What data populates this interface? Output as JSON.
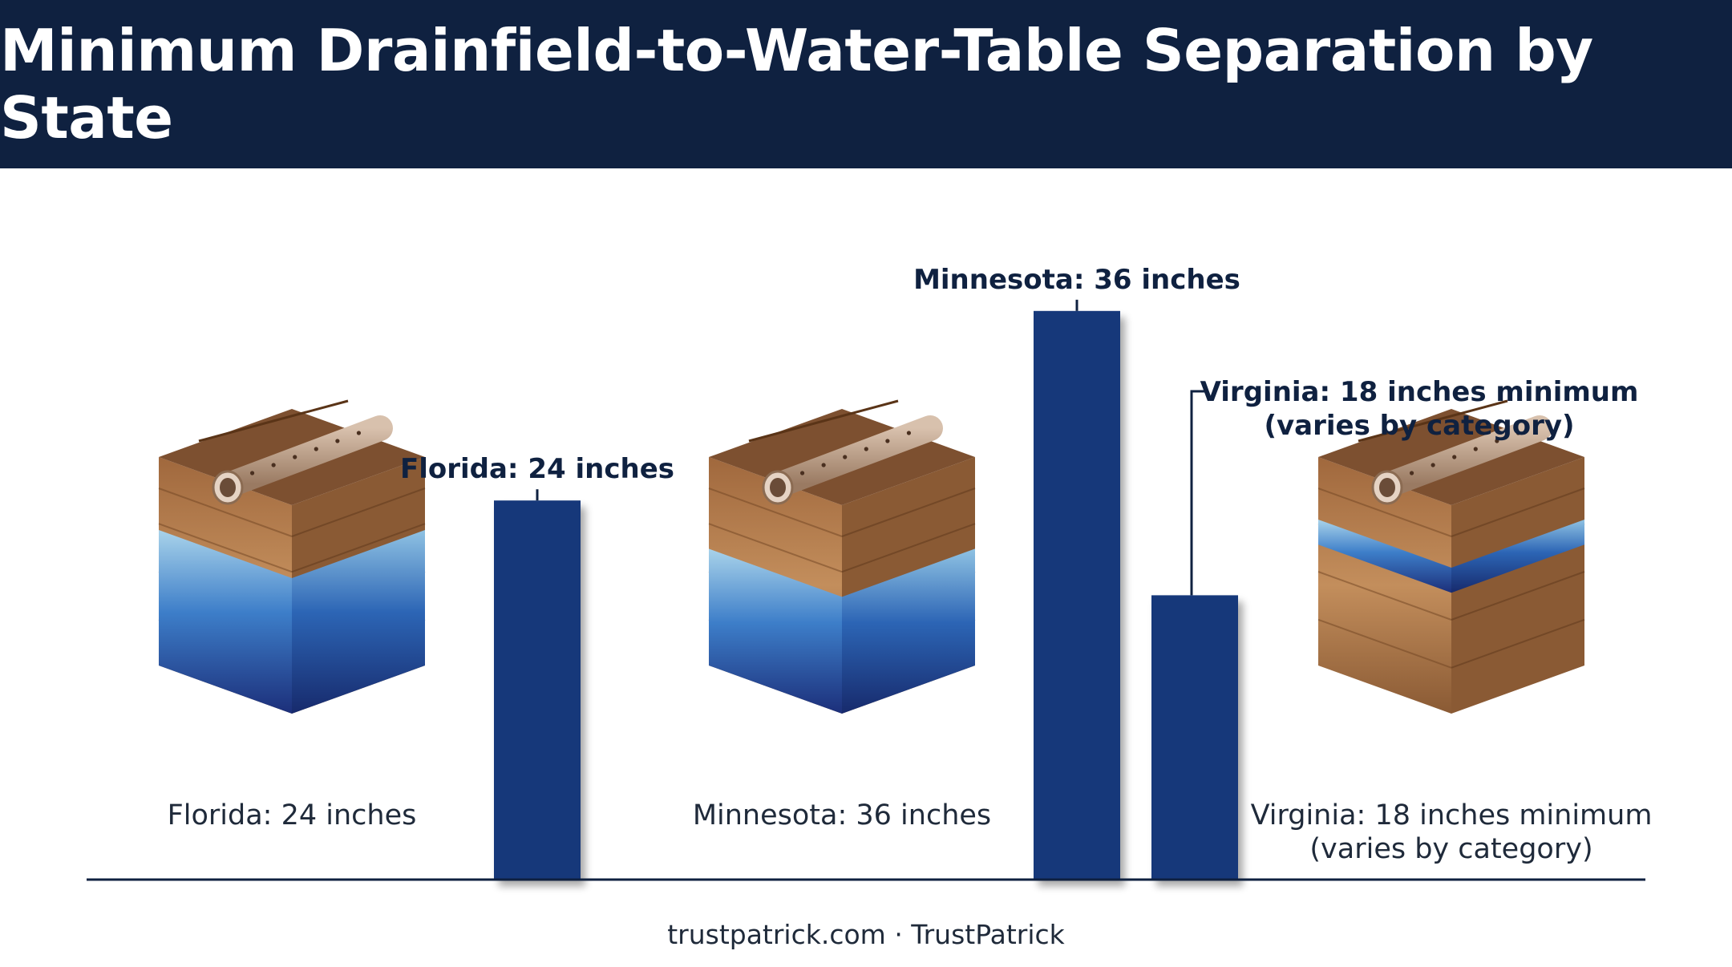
{
  "title": "Minimum Drainfield-to-Water-Table Separation by State",
  "footer": "trustpatrick.com · TrustPatrick",
  "colors": {
    "header_bg": "#0f2140",
    "bar": "#17397a",
    "label_text": "#0f2140",
    "soil": "#8a5a34",
    "water": "#2f6cc4",
    "pipe": "#b79a83"
  },
  "chart_data": {
    "type": "bar",
    "unit": "inches",
    "categories": [
      "Florida",
      "Minnesota",
      "Virginia"
    ],
    "values": [
      24,
      36,
      18
    ],
    "bar_labels": [
      [
        "Florida: 24 inches"
      ],
      [
        "Minnesota: 36 inches"
      ],
      [
        "Virginia: 18 inches minimum",
        "(varies by category)"
      ]
    ],
    "illustration_captions": [
      [
        "Florida: 24 inches"
      ],
      [
        "Minnesota: 36 inches"
      ],
      [
        "Virginia: 18 inches minimum",
        "(varies by category)"
      ]
    ],
    "illustrations": [
      "soil-water-block-icon",
      "soil-water-block-icon",
      "soil-water-block-icon"
    ],
    "grid": false,
    "legend": "none"
  }
}
